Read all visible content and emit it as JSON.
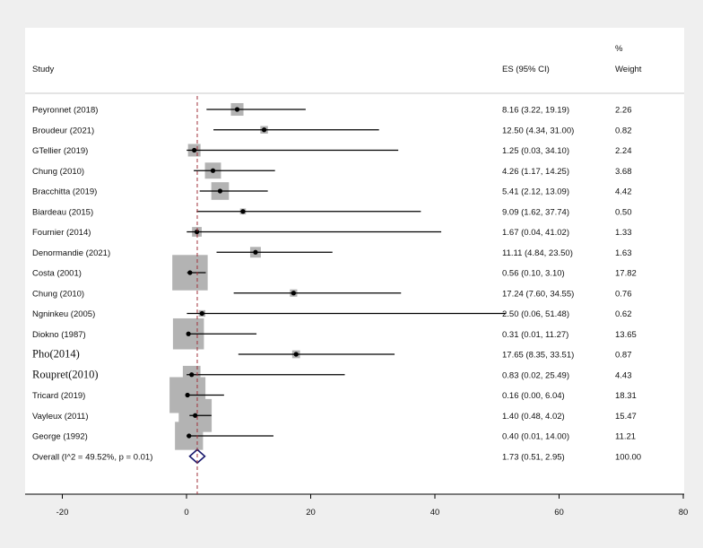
{
  "chart_data": {
    "type": "forest",
    "headers": {
      "study": "Study",
      "es": "ES (95% CI)",
      "weight_top": "%",
      "weight": "Weight"
    },
    "xlim": [
      -20,
      80
    ],
    "xticks": [
      "-20",
      "0",
      "20",
      "40",
      "60",
      "80"
    ],
    "reference_line": 1.73,
    "studies": [
      {
        "name": "Peyronnet (2018)",
        "es": 8.16,
        "lo": 3.22,
        "hi": 19.19,
        "es_text": "8.16 (3.22, 19.19)",
        "weight": 2.26,
        "weight_text": "2.26"
      },
      {
        "name": "Broudeur (2021)",
        "es": 12.5,
        "lo": 4.34,
        "hi": 31.0,
        "es_text": "12.50 (4.34, 31.00)",
        "weight": 0.82,
        "weight_text": "0.82"
      },
      {
        "name": "GTellier (2019)",
        "es": 1.25,
        "lo": 0.03,
        "hi": 34.1,
        "es_text": "1.25 (0.03, 34.10)",
        "weight": 2.24,
        "weight_text": "2.24"
      },
      {
        "name": "Chung (2010)",
        "es": 4.26,
        "lo": 1.17,
        "hi": 14.25,
        "es_text": "4.26 (1.17, 14.25)",
        "weight": 3.68,
        "weight_text": "3.68"
      },
      {
        "name": "Bracchitta (2019)",
        "es": 5.41,
        "lo": 2.12,
        "hi": 13.09,
        "es_text": "5.41 (2.12, 13.09)",
        "weight": 4.42,
        "weight_text": "4.42"
      },
      {
        "name": "Biardeau (2015)",
        "es": 9.09,
        "lo": 1.62,
        "hi": 37.74,
        "es_text": "9.09 (1.62, 37.74)",
        "weight": 0.5,
        "weight_text": "0.50"
      },
      {
        "name": "Fournier (2014)",
        "es": 1.67,
        "lo": 0.04,
        "hi": 41.02,
        "es_text": "1.67 (0.04, 41.02)",
        "weight": 1.33,
        "weight_text": "1.33"
      },
      {
        "name": "Denormandie (2021)",
        "es": 11.11,
        "lo": 4.84,
        "hi": 23.5,
        "es_text": "11.11 (4.84, 23.50)",
        "weight": 1.63,
        "weight_text": "1.63"
      },
      {
        "name": "Costa (2001)",
        "es": 0.56,
        "lo": 0.1,
        "hi": 3.1,
        "es_text": "0.56 (0.10, 3.10)",
        "weight": 17.82,
        "weight_text": "17.82"
      },
      {
        "name": "Chung (2010)",
        "es": 17.24,
        "lo": 7.6,
        "hi": 34.55,
        "es_text": "17.24 (7.60, 34.55)",
        "weight": 0.76,
        "weight_text": "0.76"
      },
      {
        "name": "Ngninkeu (2005)",
        "es": 2.5,
        "lo": 0.06,
        "hi": 51.48,
        "es_text": "2.50 (0.06, 51.48)",
        "weight": 0.62,
        "weight_text": "0.62"
      },
      {
        "name": "Diokno (1987)",
        "es": 0.31,
        "lo": 0.01,
        "hi": 11.27,
        "es_text": "0.31 (0.01, 11.27)",
        "weight": 13.65,
        "weight_text": "13.65"
      },
      {
        "name": "Pho(2014)",
        "es": 17.65,
        "lo": 8.35,
        "hi": 33.51,
        "es_text": "17.65 (8.35, 33.51)",
        "weight": 0.87,
        "weight_text": "0.87",
        "serif": true
      },
      {
        "name": "Roupret(2010)",
        "es": 0.83,
        "lo": 0.02,
        "hi": 25.49,
        "es_text": "0.83 (0.02, 25.49)",
        "weight": 4.43,
        "weight_text": "4.43",
        "serif": true
      },
      {
        "name": "Tricard (2019)",
        "es": 0.16,
        "lo": 0.0,
        "hi": 6.04,
        "es_text": "0.16 (0.00, 6.04)",
        "weight": 18.31,
        "weight_text": "18.31"
      },
      {
        "name": "Vayleux (2011)",
        "es": 1.4,
        "lo": 0.48,
        "hi": 4.02,
        "es_text": "1.40 (0.48, 4.02)",
        "weight": 15.47,
        "weight_text": "15.47"
      },
      {
        "name": "George (1992)",
        "es": 0.4,
        "lo": 0.01,
        "hi": 14.0,
        "es_text": "0.40 (0.01, 14.00)",
        "weight": 11.21,
        "weight_text": "11.21"
      }
    ],
    "overall": {
      "label": "Overall  (I^2 = 49.52%, p = 0.01)",
      "es": 1.73,
      "lo": 0.51,
      "hi": 2.95,
      "es_text": "1.73 (0.51, 2.95)",
      "weight_text": "100.00"
    },
    "colors": {
      "box": "#b3b3b3",
      "line": "#000000",
      "diamond": "#1a1a6e",
      "reference": "#a0303a",
      "panel": "#ffffff",
      "background": "#efefef"
    }
  }
}
